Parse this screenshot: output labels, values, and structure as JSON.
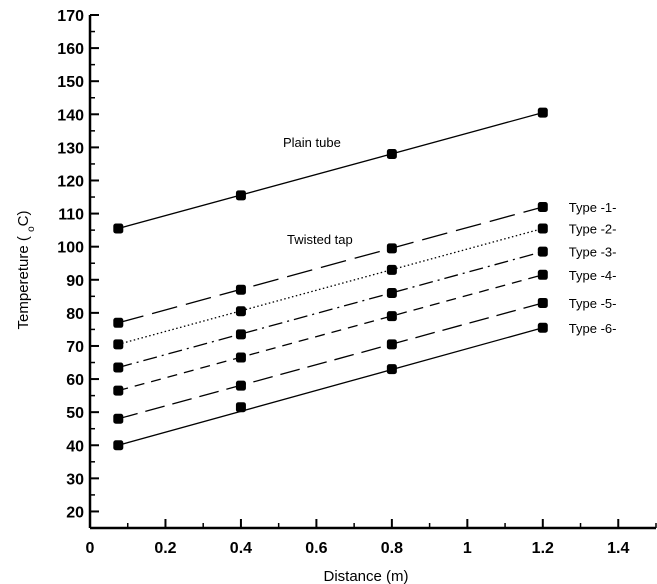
{
  "chart_data": {
    "type": "line",
    "xlabel": "Distance (m)",
    "ylabel_prefix": "Tempereture ( ",
    "ylabel_sub": "o",
    "ylabel_suffix": "C)",
    "xlim": [
      0,
      1.5
    ],
    "ylim": [
      15,
      170
    ],
    "xticks": [
      "0",
      "0.2",
      "0.4",
      "0.6",
      "0.8",
      "1",
      "1.2",
      "1.4"
    ],
    "yticks": [
      "20",
      "30",
      "40",
      "50",
      "60",
      "70",
      "80",
      "90",
      "100",
      "110",
      "120",
      "130",
      "140",
      "150",
      "160",
      "170"
    ],
    "x": [
      0.075,
      0.4,
      0.8,
      1.2
    ],
    "series": [
      {
        "name": "Plain tube",
        "values": [
          105.5,
          115.5,
          128,
          140.5
        ],
        "dash": "none",
        "label_anchor": "plain"
      },
      {
        "name": "Type -1-",
        "values": [
          77,
          87,
          99.5,
          112
        ],
        "dash": "26,9"
      },
      {
        "name": "Type -2-",
        "values": [
          70.5,
          80.5,
          93,
          105.5
        ],
        "dash": "1.5,2.5"
      },
      {
        "name": "Type -3-",
        "values": [
          63.5,
          73.5,
          86,
          98.5
        ],
        "dash": "14,5,2,5"
      },
      {
        "name": "Type -4-",
        "values": [
          56.5,
          66.5,
          79,
          91.5
        ],
        "dash": "10,7"
      },
      {
        "name": "Type -5-",
        "values": [
          48,
          58,
          70.5,
          83
        ],
        "dash": "20,8"
      },
      {
        "name": "Type -6-",
        "values": [
          40,
          51.5,
          63,
          75.5
        ],
        "dash": "none"
      }
    ],
    "annotations": [
      "Plain tube",
      "Twisted tap"
    ],
    "grid": false,
    "legend": "right-of-lines"
  }
}
